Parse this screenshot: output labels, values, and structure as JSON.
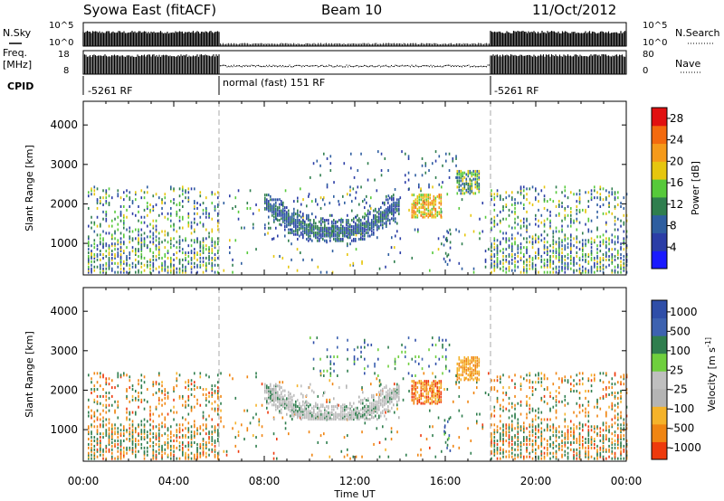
{
  "header": {
    "station": "Syowa East (fitACF)",
    "beam": "Beam 10",
    "date": "11/Oct/2012"
  },
  "panel_labels": {
    "nsky": "N.Sky",
    "nsearch": "N.Search",
    "freq_line1": "Freq.",
    "freq_line2": "[MHz]",
    "nave": "Nave",
    "cpid": "CPID"
  },
  "aux_axes": {
    "noise_left_top": "10^5",
    "noise_left_bottom": "10^0",
    "noise_right_top": "10^5",
    "noise_right_bottom": "10^0",
    "freq_left_top": "18",
    "freq_left_bottom": "8",
    "nave_right_top": "80",
    "nave_right_bottom": "0"
  },
  "cpid_segments": [
    {
      "label": "-5261 RF",
      "start_hour": 0,
      "end_hour": 6
    },
    {
      "label": "normal (fast) 151 RF",
      "start_hour": 6,
      "end_hour": 18
    },
    {
      "label": "-5261 RF",
      "start_hour": 18,
      "end_hour": 24
    }
  ],
  "colors": {
    "power_scale": [
      "#1a1aff",
      "#2b3da6",
      "#2e5ea0",
      "#2f7e4e",
      "#56c93a",
      "#e6c60f",
      "#f59a1a",
      "#f36a0e",
      "#e11010"
    ],
    "velocity_scale": [
      "#2f4ea8",
      "#3d62b0",
      "#2f7e4e",
      "#6fcf3d",
      "#bfbfbf",
      "#b4b4b4",
      "#f5b32a",
      "#f08512",
      "#ee3a0d"
    ]
  },
  "chart_data": [
    {
      "type": "heatmap",
      "quantity": "Power",
      "ylabel": "Slant Range [km]",
      "ylim": [
        200,
        4600
      ],
      "yticks": [
        "1000",
        "2000",
        "3000",
        "4000"
      ],
      "xlim": [
        0,
        24
      ],
      "xticks": [
        "00:00",
        "04:00",
        "08:00",
        "12:00",
        "16:00",
        "20:00",
        "00:00"
      ],
      "colorbar": {
        "label": "Power [dB]",
        "ticks": [
          "4",
          "8",
          "12",
          "16",
          "20",
          "24",
          "28"
        ],
        "range": [
          0,
          30
        ]
      },
      "features": [
        {
          "desc": "main echo band",
          "hour_range": [
            8,
            14
          ],
          "range_km": [
            1100,
            2300
          ],
          "dominant_power_db": [
            4,
            12
          ]
        },
        {
          "desc": "strong patch",
          "hour_range": [
            14.5,
            15.8
          ],
          "range_km": [
            1700,
            2300
          ],
          "dominant_power_db": [
            16,
            24
          ]
        },
        {
          "desc": "late patch",
          "hour_range": [
            16.5,
            17.5
          ],
          "range_km": [
            2300,
            2900
          ],
          "dominant_power_db": [
            8,
            20
          ]
        }
      ]
    },
    {
      "type": "heatmap",
      "quantity": "Velocity",
      "ylabel": "Slant Range [km]",
      "ylim": [
        200,
        4600
      ],
      "yticks": [
        "1000",
        "2000",
        "3000",
        "4000"
      ],
      "xlim": [
        0,
        24
      ],
      "xticks": [
        "00:00",
        "04:00",
        "08:00",
        "12:00",
        "16:00",
        "20:00",
        "00:00"
      ],
      "xlabel": "Time UT",
      "colorbar": {
        "label": "Velocity [m s^-1]",
        "ticks": [
          "1000",
          "500",
          "100",
          "25",
          "-25",
          "-100",
          "-500",
          "-1000"
        ]
      },
      "features": [
        {
          "desc": "ground scatter band",
          "hour_range": [
            8,
            14
          ],
          "range_km": [
            1300,
            2200
          ],
          "velocity": "near zero"
        },
        {
          "desc": "receding patch",
          "hour_range": [
            14.5,
            15.8
          ],
          "range_km": [
            1700,
            2300
          ],
          "velocity": "-500 to -1000"
        },
        {
          "desc": "late patch",
          "hour_range": [
            16.5,
            17.5
          ],
          "range_km": [
            2300,
            2900
          ],
          "velocity": "-100 to -500"
        }
      ]
    }
  ]
}
